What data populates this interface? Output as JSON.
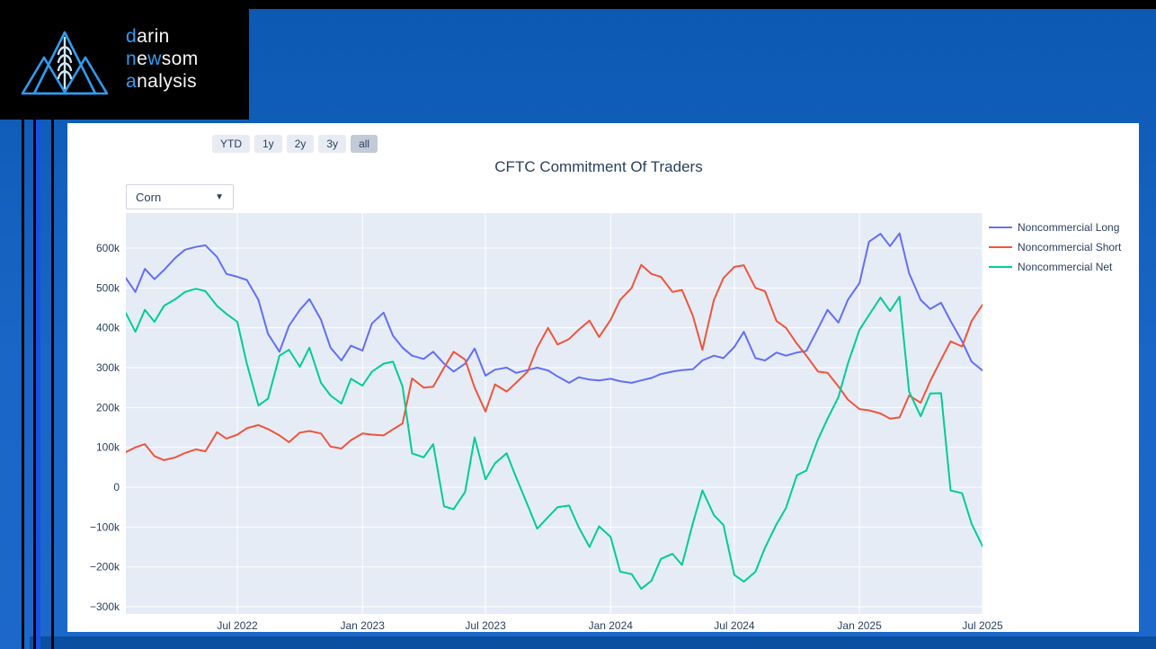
{
  "logo": {
    "blue": "#2f9cf2",
    "white": "#f5f6f7",
    "lines": [
      {
        "segments": [
          {
            "text": "d",
            "blue": true
          },
          {
            "text": "arin",
            "blue": false
          }
        ]
      },
      {
        "segments": [
          {
            "text": "n",
            "blue": true
          },
          {
            "text": "e",
            "blue": false
          },
          {
            "text": "w",
            "blue": true
          },
          {
            "text": "som",
            "blue": false
          }
        ]
      },
      {
        "segments": [
          {
            "text": "a",
            "blue": true
          },
          {
            "text": "nalysis",
            "blue": false
          }
        ]
      }
    ]
  },
  "controls": {
    "range_buttons": [
      {
        "label": "YTD",
        "active": false
      },
      {
        "label": "1y",
        "active": false
      },
      {
        "label": "2y",
        "active": false
      },
      {
        "label": "3y",
        "active": false
      },
      {
        "label": "all",
        "active": true
      }
    ],
    "commodity_select": {
      "value": "Corn",
      "chevron": "▼"
    }
  },
  "chart_data": {
    "type": "line",
    "title": "CFTC Commitment Of Traders",
    "plot_bgcolor": "#e5ecf6",
    "grid_color": "#ffffff",
    "text_color": "#2a3f5f",
    "legend_position": "top-right-outside",
    "xlim": [
      "2022-01-18",
      "2025-07-01"
    ],
    "ylim": [
      -318000,
      688000
    ],
    "y_ticks": [
      {
        "value": 600000,
        "label": "600k"
      },
      {
        "value": 500000,
        "label": "500k"
      },
      {
        "value": 400000,
        "label": "400k"
      },
      {
        "value": 300000,
        "label": "300k"
      },
      {
        "value": 200000,
        "label": "200k"
      },
      {
        "value": 100000,
        "label": "100k"
      },
      {
        "value": 0,
        "label": "0"
      },
      {
        "value": -100000,
        "label": "−100k"
      },
      {
        "value": -200000,
        "label": "−200k"
      },
      {
        "value": -300000,
        "label": "−300k"
      }
    ],
    "x_ticks": [
      {
        "value": "2022-07-01",
        "label": "Jul 2022"
      },
      {
        "value": "2023-01-01",
        "label": "Jan 2023"
      },
      {
        "value": "2023-07-01",
        "label": "Jul 2023"
      },
      {
        "value": "2024-01-01",
        "label": "Jan 2024"
      },
      {
        "value": "2024-07-01",
        "label": "Jul 2024"
      },
      {
        "value": "2025-01-01",
        "label": "Jan 2025"
      },
      {
        "value": "2025-07-01",
        "label": "Jul 2025"
      }
    ],
    "x": [
      "2022-01-18",
      "2022-02-01",
      "2022-02-15",
      "2022-03-01",
      "2022-03-15",
      "2022-04-01",
      "2022-04-15",
      "2022-05-01",
      "2022-05-15",
      "2022-06-01",
      "2022-06-15",
      "2022-07-01",
      "2022-07-15",
      "2022-08-01",
      "2022-08-15",
      "2022-09-01",
      "2022-09-15",
      "2022-10-01",
      "2022-10-15",
      "2022-11-01",
      "2022-11-15",
      "2022-12-01",
      "2022-12-15",
      "2023-01-01",
      "2023-01-15",
      "2023-02-01",
      "2023-02-15",
      "2023-03-01",
      "2023-03-15",
      "2023-04-01",
      "2023-04-15",
      "2023-05-01",
      "2023-05-15",
      "2023-06-01",
      "2023-06-15",
      "2023-07-01",
      "2023-07-15",
      "2023-08-01",
      "2023-08-15",
      "2023-09-01",
      "2023-09-15",
      "2023-10-01",
      "2023-10-15",
      "2023-11-01",
      "2023-11-15",
      "2023-12-01",
      "2023-12-15",
      "2024-01-01",
      "2024-01-15",
      "2024-02-01",
      "2024-02-15",
      "2024-03-01",
      "2024-03-15",
      "2024-04-01",
      "2024-04-15",
      "2024-05-01",
      "2024-05-15",
      "2024-06-01",
      "2024-06-15",
      "2024-07-01",
      "2024-07-15",
      "2024-08-01",
      "2024-08-15",
      "2024-09-01",
      "2024-09-15",
      "2024-10-01",
      "2024-10-15",
      "2024-11-01",
      "2024-11-15",
      "2024-12-01",
      "2024-12-15",
      "2025-01-01",
      "2025-01-15",
      "2025-02-01",
      "2025-02-15",
      "2025-03-01",
      "2025-03-15",
      "2025-04-01",
      "2025-04-15",
      "2025-05-01",
      "2025-05-15",
      "2025-06-01",
      "2025-06-15",
      "2025-07-01"
    ],
    "series": [
      {
        "name": "Noncommercial Long",
        "color": "#636efa",
        "values": [
          525000,
          490000,
          548000,
          522000,
          545000,
          576000,
          596000,
          603000,
          607000,
          578000,
          535000,
          528000,
          520000,
          470000,
          385000,
          340000,
          405000,
          445000,
          472000,
          420000,
          350000,
          318000,
          355000,
          343000,
          411000,
          438000,
          380000,
          350000,
          330000,
          322000,
          340000,
          310000,
          290000,
          310000,
          348000,
          280000,
          295000,
          300000,
          287000,
          294000,
          300000,
          293000,
          278000,
          262000,
          276000,
          270000,
          268000,
          272000,
          266000,
          262000,
          268000,
          274000,
          284000,
          290000,
          294000,
          296000,
          318000,
          330000,
          324000,
          352000,
          390000,
          324000,
          318000,
          338000,
          330000,
          338000,
          342000,
          398000,
          445000,
          413000,
          470000,
          512000,
          616000,
          636000,
          605000,
          637000,
          537000,
          470000,
          447000,
          463000,
          417000,
          366000,
          315000,
          293000
        ]
      },
      {
        "name": "Noncommercial Short",
        "color": "#ef553b",
        "values": [
          88000,
          100000,
          108000,
          78000,
          68000,
          75000,
          86000,
          95000,
          90000,
          138000,
          122000,
          132000,
          148000,
          156000,
          146000,
          130000,
          113000,
          137000,
          141000,
          135000,
          102000,
          97000,
          118000,
          135000,
          132000,
          130000,
          145000,
          160000,
          273000,
          250000,
          252000,
          300000,
          340000,
          320000,
          250000,
          190000,
          258000,
          240000,
          262000,
          290000,
          350000,
          400000,
          358000,
          372000,
          395000,
          418000,
          377000,
          420000,
          470000,
          500000,
          558000,
          535000,
          528000,
          490000,
          495000,
          430000,
          345000,
          470000,
          525000,
          553000,
          557000,
          500000,
          492000,
          417000,
          400000,
          360000,
          330000,
          290000,
          287000,
          253000,
          220000,
          196000,
          193000,
          185000,
          172000,
          175000,
          230000,
          212000,
          266000,
          320000,
          366000,
          353000,
          417000,
          458000
        ]
      },
      {
        "name": "Noncommercial Net",
        "color": "#00cc96",
        "values": [
          437000,
          390000,
          445000,
          415000,
          455000,
          472000,
          490000,
          498000,
          492000,
          455000,
          435000,
          415000,
          310000,
          205000,
          222000,
          330000,
          345000,
          302000,
          350000,
          262000,
          230000,
          210000,
          272000,
          255000,
          290000,
          310000,
          315000,
          253000,
          85000,
          75000,
          108000,
          -48000,
          -55000,
          -12000,
          125000,
          20000,
          60000,
          85000,
          25000,
          -45000,
          -104000,
          -75000,
          -50000,
          -46000,
          -100000,
          -150000,
          -98000,
          -125000,
          -212000,
          -218000,
          -255000,
          -235000,
          -180000,
          -167000,
          -195000,
          -90000,
          -8000,
          -70000,
          -95000,
          -220000,
          -237000,
          -212000,
          -152000,
          -93000,
          -52000,
          30000,
          42000,
          120000,
          172000,
          226000,
          310000,
          395000,
          432000,
          476000,
          442000,
          478000,
          240000,
          178000,
          235000,
          236000,
          -8000,
          -15000,
          -92000,
          -148000
        ]
      }
    ]
  }
}
